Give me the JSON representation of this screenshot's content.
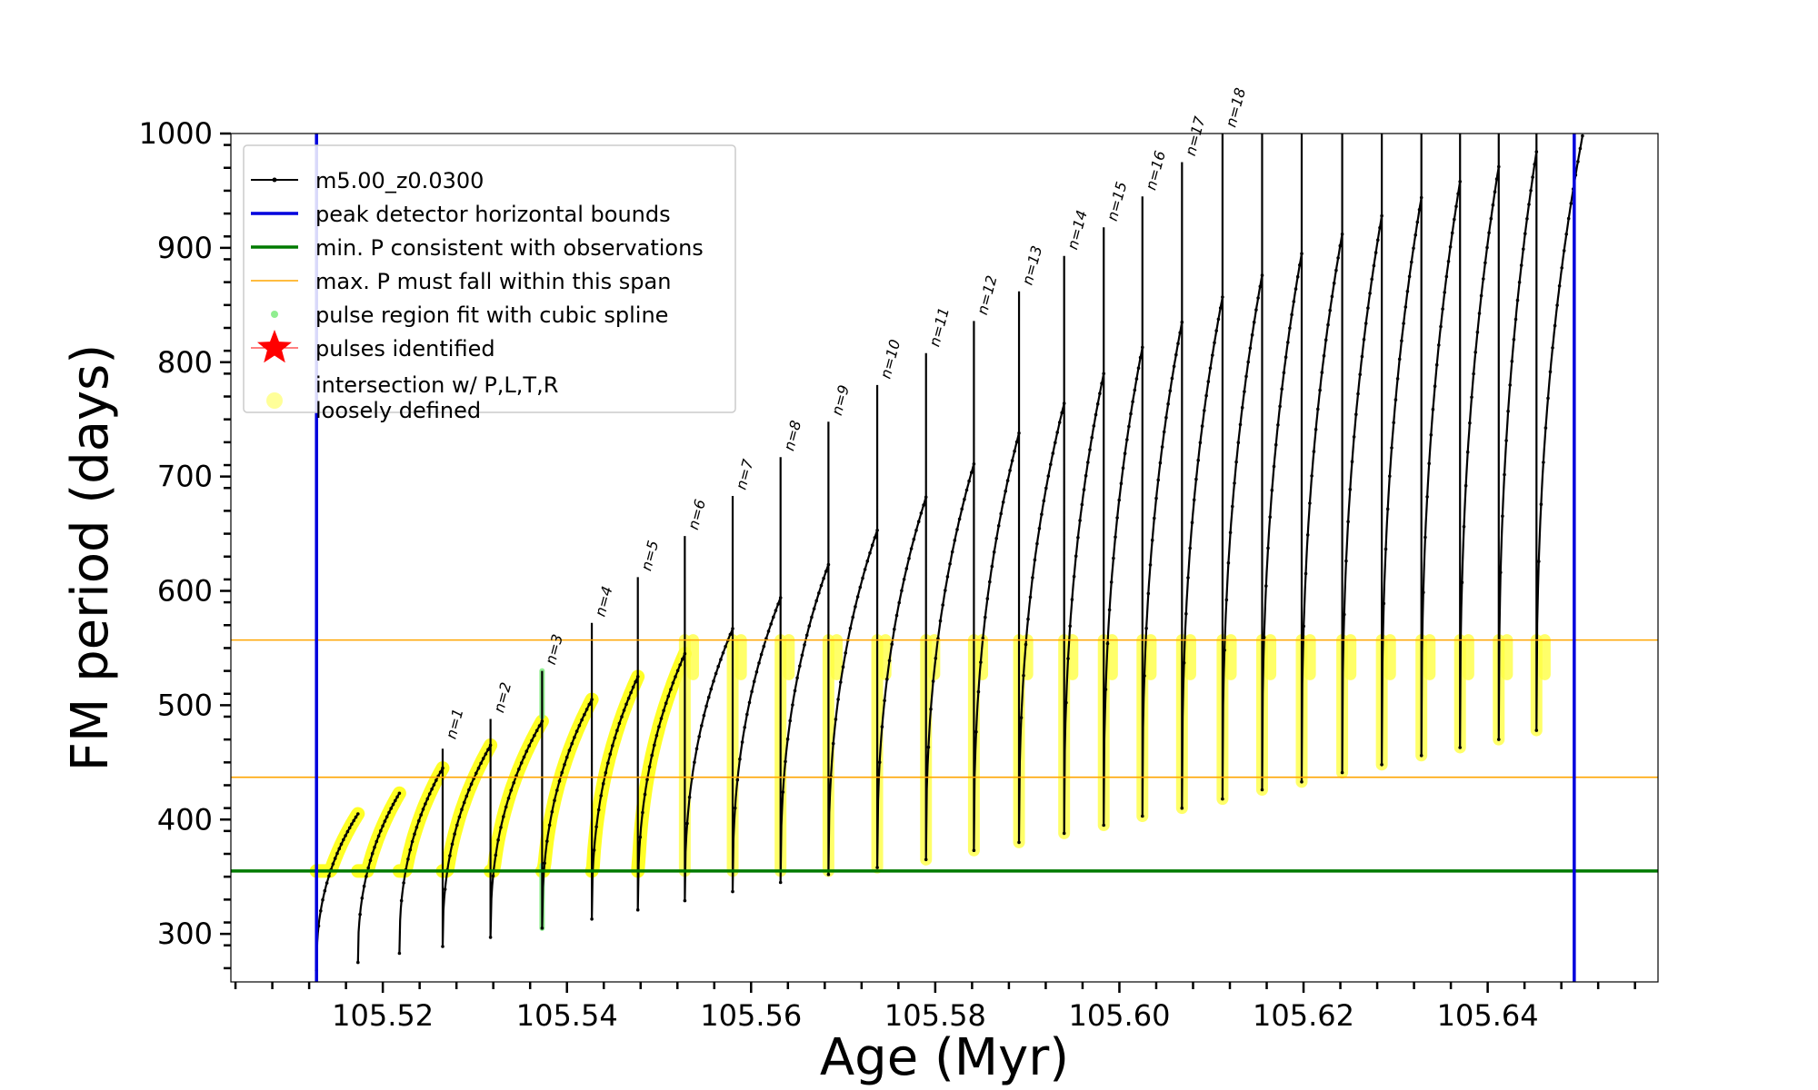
{
  "chart_data": {
    "type": "line",
    "xlabel": "Age (Myr)",
    "ylabel": "FM period (days)",
    "xlim": [
      105.5035,
      105.6585
    ],
    "ylim": [
      258,
      1000
    ],
    "xticks": [
      105.52,
      105.54,
      105.56,
      105.58,
      105.6,
      105.62,
      105.64
    ],
    "xtick_labels": [
      "105.52",
      "105.54",
      "105.56",
      "105.58",
      "105.60",
      "105.62",
      "105.64"
    ],
    "yticks": [
      300,
      400,
      500,
      600,
      700,
      800,
      900,
      1000
    ],
    "ytick_labels": [
      "300",
      "400",
      "500",
      "600",
      "700",
      "800",
      "900",
      "1000"
    ],
    "legend": {
      "position": "upper-left",
      "entries": [
        {
          "label": "m5.00_z0.0300",
          "style": "line-marker",
          "color": "#000000"
        },
        {
          "label": "peak detector horizontal bounds",
          "style": "line",
          "color": "#0000dd"
        },
        {
          "label": "min. P consistent with observations",
          "style": "line",
          "color": "#007a00"
        },
        {
          "label": "max. P must fall within this span",
          "style": "thin-line",
          "color": "#ffa500"
        },
        {
          "label": "pulse region fit with cubic spline",
          "style": "small-dot",
          "color": "#90ee90"
        },
        {
          "label": "pulses identified",
          "style": "star",
          "color": "#ff0000"
        },
        {
          "label": "intersection w/ P,L,T,R",
          "label2": "loosely defined",
          "style": "big-dot",
          "color": "#ffff99"
        }
      ]
    },
    "reference_lines": {
      "vertical": [
        105.5128,
        105.6494
      ],
      "vertical_color": "#0000dd",
      "min_period": 355,
      "min_period_color": "#007a00",
      "max_period_span": [
        437,
        557
      ],
      "max_period_color": "#ffa500"
    },
    "pulse_labels": [
      "n=1",
      "n=2",
      "n=3",
      "n=4",
      "n=5",
      "n=6",
      "n=7",
      "n=8",
      "n=9",
      "n=10",
      "n=11",
      "n=12",
      "n=13",
      "n=14",
      "n=15",
      "n=16",
      "n=17",
      "n=18"
    ],
    "pulses": [
      {
        "start": 105.5128,
        "end": 105.5173,
        "min": 268,
        "spike": null,
        "peak": 405
      },
      {
        "start": 105.5173,
        "end": 105.5218,
        "min": 275,
        "spike": null,
        "peak": 423
      },
      {
        "start": 105.5218,
        "end": 105.5265,
        "min": 283,
        "spike": null,
        "peak": 445
      },
      {
        "start": 105.5265,
        "end": 105.5317,
        "min": 289,
        "spike": 462,
        "peak": 465
      },
      {
        "start": 105.5317,
        "end": 105.5373,
        "min": 297,
        "spike": 488,
        "peak": 486
      },
      {
        "start": 105.5373,
        "end": 105.5427,
        "min": 305,
        "spike": 530,
        "peak": 505
      },
      {
        "start": 105.5427,
        "end": 105.5477,
        "min": 313,
        "spike": 572,
        "peak": 525
      },
      {
        "start": 105.5477,
        "end": 105.5528,
        "min": 321,
        "spike": 612,
        "peak": 545
      },
      {
        "start": 105.5528,
        "end": 105.558,
        "min": 329,
        "spike": 648,
        "peak": 567
      },
      {
        "start": 105.558,
        "end": 105.5632,
        "min": 337,
        "spike": 683,
        "peak": 594
      },
      {
        "start": 105.5632,
        "end": 105.5684,
        "min": 345,
        "spike": 717,
        "peak": 623
      },
      {
        "start": 105.5684,
        "end": 105.5737,
        "min": 352,
        "spike": 748,
        "peak": 653
      },
      {
        "start": 105.5737,
        "end": 105.579,
        "min": 358,
        "spike": 780,
        "peak": 682
      },
      {
        "start": 105.579,
        "end": 105.5842,
        "min": 365,
        "spike": 808,
        "peak": 711
      },
      {
        "start": 105.5842,
        "end": 105.5891,
        "min": 373,
        "spike": 836,
        "peak": 738
      },
      {
        "start": 105.5891,
        "end": 105.594,
        "min": 380,
        "spike": 862,
        "peak": 764
      },
      {
        "start": 105.594,
        "end": 105.5983,
        "min": 388,
        "spike": 893,
        "peak": 790
      },
      {
        "start": 105.5983,
        "end": 105.6025,
        "min": 395,
        "spike": 918,
        "peak": 813
      },
      {
        "start": 105.6025,
        "end": 105.6068,
        "min": 403,
        "spike": 945,
        "peak": 835
      },
      {
        "start": 105.6068,
        "end": 105.6112,
        "min": 410,
        "spike": 975,
        "peak": 857
      },
      {
        "start": 105.6112,
        "end": 105.6155,
        "min": 418,
        "spike": 1000,
        "peak": 876
      },
      {
        "start": 105.6155,
        "end": 105.6198,
        "min": 426,
        "spike": 1000,
        "peak": 895
      },
      {
        "start": 105.6198,
        "end": 105.6242,
        "min": 433,
        "spike": 1000,
        "peak": 912
      },
      {
        "start": 105.6242,
        "end": 105.6285,
        "min": 441,
        "spike": 1000,
        "peak": 928
      },
      {
        "start": 105.6285,
        "end": 105.6328,
        "min": 448,
        "spike": 1000,
        "peak": 944
      },
      {
        "start": 105.6328,
        "end": 105.637,
        "min": 456,
        "spike": 1000,
        "peak": 958
      },
      {
        "start": 105.637,
        "end": 105.6412,
        "min": 463,
        "spike": 1000,
        "peak": 971
      },
      {
        "start": 105.6412,
        "end": 105.6453,
        "min": 470,
        "spike": 1000,
        "peak": 984
      },
      {
        "start": 105.6453,
        "end": 105.6503,
        "min": 478,
        "spike": 1000,
        "peak": 998
      }
    ]
  }
}
